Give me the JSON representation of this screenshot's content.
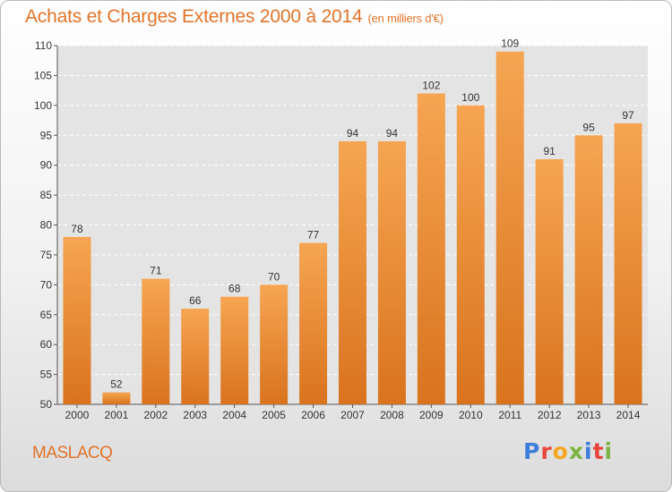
{
  "chart_data": {
    "type": "bar",
    "title": "Achats et Charges Externes 2000 à 2014",
    "subtitle": "(en milliers d'€)",
    "categories": [
      "2000",
      "2001",
      "2002",
      "2003",
      "2004",
      "2005",
      "2006",
      "2007",
      "2008",
      "2009",
      "2010",
      "2011",
      "2012",
      "2013",
      "2014"
    ],
    "values": [
      78,
      52,
      71,
      66,
      68,
      70,
      77,
      94,
      94,
      102,
      100,
      109,
      91,
      95,
      97
    ],
    "ylim": [
      50,
      110
    ],
    "yticks": [
      50,
      55,
      60,
      65,
      70,
      75,
      80,
      85,
      90,
      95,
      100,
      105,
      110
    ],
    "grid": true,
    "bar_color_top": "#f6a552",
    "bar_color_bottom": "#d9731e"
  },
  "footer": {
    "commune": "MASLACQ",
    "logo": "Proxiti"
  },
  "colors": {
    "title": "#e0742a",
    "logo_letters": [
      "#3b7dd8",
      "#e8453c",
      "#f5a623",
      "#7cb342",
      "#3b7dd8",
      "#e8453c",
      "#7cb342"
    ]
  }
}
